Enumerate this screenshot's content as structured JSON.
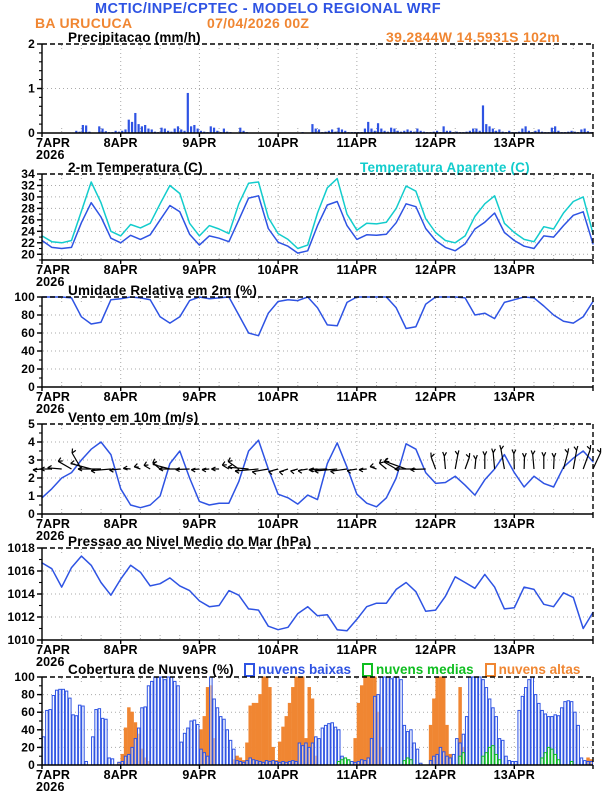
{
  "header": {
    "title": "MCTIC/INPE/CPTEC - MODELO REGIONAL WRF",
    "station": "BA URUCUCA",
    "datetime": "07/04/2026 00Z",
    "location": "39.2844W 14.5931S 102m"
  },
  "colors": {
    "blue": "#2E53E3",
    "cyan": "#12CCCC",
    "orange": "#F08632",
    "green": "#0FBE20",
    "grid": "#AAAAAA",
    "black": "#000000",
    "cloud_low_fill": "#F4F7FF"
  },
  "x_axis": {
    "labels": [
      "7APR",
      "8APR",
      "9APR",
      "10APR",
      "11APR",
      "12APR",
      "13APR"
    ],
    "year": "2026",
    "days": 7
  },
  "chart_data": [
    {
      "id": "precipitation",
      "type": "bar",
      "title": "Precipitacao (mm/h)",
      "ylabel": "mm/h",
      "ylim": [
        0,
        2
      ],
      "yticks": [
        0,
        1,
        2
      ],
      "step_hours": 1,
      "values": [
        0,
        0,
        0,
        0,
        0,
        0,
        0,
        0,
        0,
        0,
        0.05,
        0.03,
        0.18,
        0.17,
        0.03,
        0,
        0,
        0.15,
        0.1,
        0.04,
        0.02,
        0.02,
        0.05,
        0.03,
        0.05,
        0.08,
        0.3,
        0.25,
        0.45,
        0.2,
        0.15,
        0.18,
        0.1,
        0.08,
        0.03,
        0.02,
        0.12,
        0.1,
        0.05,
        0.03,
        0.1,
        0.15,
        0.08,
        0.05,
        0.9,
        0.15,
        0.18,
        0.1,
        0.05,
        0.03,
        0.02,
        0.15,
        0.12,
        0.05,
        0.02,
        0.1,
        0.03,
        0.02,
        0,
        0,
        0.12,
        0.05,
        0.02,
        0,
        0,
        0.01,
        0,
        0,
        0.01,
        0,
        0,
        0,
        0.01,
        0,
        0.01,
        0,
        0.01,
        0,
        0.01,
        0.02,
        0.01,
        0.01,
        0.2,
        0.1,
        0.08,
        0.02,
        0.03,
        0.05,
        0.08,
        0.03,
        0.12,
        0.08,
        0.05,
        0.02,
        0.02,
        0.02,
        0.02,
        0.02,
        0.1,
        0.25,
        0.1,
        0.05,
        0.22,
        0.1,
        0.05,
        0.03,
        0.12,
        0.1,
        0.05,
        0.03,
        0.05,
        0.08,
        0.05,
        0.03,
        0.1,
        0.05,
        0.03,
        0.02,
        0.02,
        0.03,
        0.05,
        0.02,
        0.15,
        0.05,
        0.05,
        0.02,
        0.03,
        0.02,
        0.02,
        0.03,
        0.05,
        0.1,
        0.1,
        0.05,
        0.62,
        0.2,
        0.15,
        0.1,
        0.05,
        0.08,
        0.03,
        0.02,
        0.05,
        0.02,
        0.02,
        0.03,
        0.1,
        0.15,
        0.05,
        0.02,
        0.05,
        0.08,
        0.03,
        0.02,
        0.02,
        0.12,
        0.15,
        0.05,
        0.02,
        0.02,
        0.03,
        0.05,
        0.03,
        0.02,
        0.08,
        0.1,
        0.04,
        0.02
      ]
    },
    {
      "id": "temperature",
      "type": "line",
      "title": "2-m Temperatura (C)",
      "ylim": [
        19,
        34
      ],
      "yticks": [
        20,
        22,
        24,
        26,
        28,
        30,
        32,
        34
      ],
      "step_days": 0.125,
      "series": [
        {
          "name": "Temperatura Aparente (C)",
          "color": "cyan",
          "values": [
            23.2,
            22.2,
            22.0,
            22.4,
            27.5,
            32.6,
            29.0,
            24.0,
            23.2,
            25.2,
            24.6,
            25.4,
            28.8,
            32.0,
            30.6,
            25.4,
            23.2,
            25.0,
            24.4,
            23.6,
            28.8,
            32.4,
            32.6,
            26.4,
            23.6,
            22.6,
            21.0,
            21.6,
            27.2,
            31.6,
            33.2,
            27.0,
            24.2,
            25.4,
            25.3,
            25.6,
            28.0,
            31.9,
            31.0,
            26.2,
            23.8,
            22.4,
            22.0,
            23.2,
            26.6,
            28.8,
            30.2,
            25.4,
            23.8,
            22.6,
            22.2,
            24.8,
            24.4,
            27.2,
            29.2,
            30.0,
            23.6
          ]
        },
        {
          "name": "2-m Temperatura (C)",
          "color": "blue",
          "values": [
            22.4,
            21.2,
            21.0,
            21.2,
            25.5,
            29.0,
            26.5,
            22.8,
            22.0,
            23.3,
            22.6,
            23.4,
            26.0,
            28.5,
            27.4,
            23.5,
            21.6,
            23.2,
            22.8,
            22.2,
            26.0,
            29.8,
            30.2,
            24.5,
            22.1,
            21.4,
            20.2,
            20.6,
            25.0,
            28.6,
            29.2,
            25.0,
            22.6,
            23.4,
            23.3,
            23.5,
            25.5,
            28.8,
            28.3,
            24.5,
            22.4,
            21.2,
            20.6,
            21.8,
            24.4,
            25.6,
            27.2,
            23.8,
            22.4,
            21.4,
            21.0,
            23.2,
            23.0,
            25.0,
            26.8,
            27.4,
            21.8
          ]
        }
      ]
    },
    {
      "id": "humidity",
      "type": "line",
      "title": "Umidade Relativa em 2m (%)",
      "ylim": [
        0,
        100
      ],
      "yticks": [
        0,
        20,
        40,
        60,
        80,
        100
      ],
      "step_days": 0.125,
      "series": [
        {
          "name": "Umidade Relativa em 2m (%)",
          "color": "blue",
          "values": [
            100,
            100,
            100,
            99,
            78,
            70,
            72,
            97,
            98,
            100,
            99,
            97,
            78,
            71,
            78,
            96,
            100,
            98,
            99,
            100,
            80,
            60,
            57,
            82,
            95,
            97,
            96,
            100,
            88,
            69,
            68,
            94,
            100,
            100,
            100,
            100,
            88,
            65,
            67,
            92,
            100,
            100,
            100,
            99,
            80,
            82,
            76,
            94,
            97,
            100,
            99,
            90,
            80,
            73,
            71,
            78,
            95
          ]
        }
      ]
    },
    {
      "id": "wind",
      "type": "line-vectors",
      "title": "Vento em 10m (m/s)",
      "ylim": [
        0,
        5
      ],
      "yticks": [
        0,
        1,
        2,
        3,
        4,
        5
      ],
      "step_days": 0.125,
      "vector_anchor_value": 2.5,
      "speed": [
        0.9,
        1.4,
        2.0,
        2.3,
        3.0,
        3.6,
        4.0,
        3.3,
        1.4,
        0.5,
        0.35,
        0.5,
        1.0,
        2.8,
        3.5,
        2.0,
        0.7,
        0.5,
        0.6,
        0.6,
        1.8,
        3.5,
        4.1,
        2.5,
        1.1,
        0.9,
        0.55,
        1.05,
        0.8,
        2.8,
        3.95,
        2.6,
        1.1,
        0.6,
        0.4,
        0.9,
        2.0,
        3.9,
        3.6,
        2.3,
        1.7,
        1.75,
        2.1,
        1.6,
        1.05,
        1.9,
        2.5,
        3.3,
        2.3,
        1.5,
        2.1,
        1.7,
        1.5,
        2.6,
        3.1,
        3.5,
        2.9
      ],
      "direction_deg_math": [
        185,
        180,
        175,
        150,
        120,
        165,
        180,
        185,
        185,
        175,
        160,
        150,
        140,
        165,
        180,
        182,
        185,
        185,
        180,
        150,
        145,
        175,
        185,
        190,
        195,
        198,
        195,
        190,
        185,
        182,
        185,
        188,
        190,
        185,
        160,
        140,
        150,
        160,
        180,
        182,
        110,
        95,
        80,
        70,
        85,
        90,
        95,
        100,
        92,
        88,
        95,
        90,
        88,
        75,
        80,
        70,
        65
      ]
    },
    {
      "id": "pressure",
      "type": "line",
      "title": "Pressao ao Nivel Medio do Mar (hPa)",
      "ylim": [
        1010,
        1018
      ],
      "yticks": [
        1010,
        1012,
        1014,
        1016,
        1018
      ],
      "step_days": 0.125,
      "series": [
        {
          "name": "Pressao ao Nivel Medio do Mar (hPa)",
          "color": "blue",
          "values": [
            1016.7,
            1016.2,
            1014.6,
            1016.3,
            1017.3,
            1016.5,
            1015.0,
            1013.9,
            1015.3,
            1016.5,
            1015.9,
            1014.7,
            1014.9,
            1015.4,
            1014.7,
            1014.3,
            1013.4,
            1012.9,
            1013.0,
            1014.3,
            1013.9,
            1012.7,
            1012.6,
            1011.2,
            1010.9,
            1011.1,
            1012.3,
            1012.9,
            1012.1,
            1012.2,
            1010.9,
            1010.8,
            1011.8,
            1012.9,
            1013.2,
            1013.2,
            1014.4,
            1015.0,
            1014.2,
            1012.5,
            1012.6,
            1013.8,
            1015.5,
            1015.0,
            1014.5,
            1015.7,
            1014.6,
            1012.7,
            1012.8,
            1014.6,
            1014.4,
            1013.1,
            1012.9,
            1014.1,
            1013.7,
            1011.0,
            1012.4
          ]
        }
      ]
    },
    {
      "id": "clouds",
      "type": "bar-multi",
      "title": "Cobertura de Nuvens (%)",
      "ylim": [
        0,
        100
      ],
      "yticks": [
        0,
        20,
        40,
        60,
        80,
        100
      ],
      "step_hours": 1,
      "series": [
        {
          "name": "nuvens altas",
          "color": "orange",
          "style": "solid",
          "values": [
            0,
            0,
            0,
            0,
            0,
            0,
            0,
            0,
            0,
            0,
            0,
            0,
            0,
            0,
            0,
            0,
            0,
            0,
            0,
            0,
            0,
            0,
            0,
            3,
            12,
            42,
            65,
            60,
            48,
            35,
            18,
            8,
            4,
            0,
            0,
            0,
            0,
            0,
            0,
            0,
            0,
            0,
            0,
            0,
            0,
            0,
            0,
            0,
            40,
            55,
            88,
            90,
            30,
            0,
            0,
            0,
            0,
            0,
            6,
            10,
            8,
            5,
            25,
            67,
            70,
            70,
            80,
            100,
            100,
            88,
            20,
            5,
            26,
            43,
            55,
            70,
            88,
            100,
            100,
            100,
            30,
            88,
            75,
            10,
            0,
            0,
            0,
            0,
            0,
            0,
            0,
            0,
            0,
            0,
            0,
            30,
            70,
            90,
            100,
            100,
            100,
            100,
            60,
            20,
            0,
            0,
            0,
            0,
            0,
            0,
            0,
            0,
            0,
            0,
            0,
            0,
            0,
            0,
            45,
            75,
            100,
            100,
            100,
            45,
            12,
            0,
            0,
            88,
            20,
            0,
            0,
            0,
            0,
            0,
            0,
            0,
            0,
            0,
            0,
            0,
            0,
            0,
            0,
            0,
            0,
            0,
            0,
            0,
            0,
            0,
            0,
            0,
            0,
            0,
            0,
            0,
            0,
            0,
            0,
            0,
            0,
            0,
            0,
            0,
            0,
            0,
            8,
            6
          ]
        },
        {
          "name": "nuvens baixas",
          "color": "blue",
          "style": "outline",
          "values": [
            32,
            62,
            63,
            79,
            85,
            86,
            86,
            84,
            76,
            57,
            56,
            68,
            67,
            4,
            0,
            32,
            63,
            64,
            53,
            52,
            8,
            7,
            0,
            3,
            4,
            10,
            12,
            20,
            30,
            42,
            65,
            66,
            90,
            95,
            100,
            100,
            100,
            97,
            100,
            100,
            95,
            90,
            26,
            36,
            42,
            50,
            51,
            46,
            18,
            14,
            10,
            100,
            75,
            65,
            55,
            52,
            40,
            28,
            18,
            5,
            4,
            3,
            5,
            8,
            6,
            5,
            4,
            3,
            5,
            4,
            5,
            4,
            3,
            4,
            3,
            4,
            5,
            4,
            25,
            22,
            25,
            20,
            25,
            32,
            30,
            42,
            45,
            47,
            48,
            43,
            40,
            10,
            8,
            5,
            4,
            3,
            4,
            6,
            5,
            8,
            30,
            78,
            80,
            100,
            100,
            100,
            98,
            100,
            100,
            97,
            45,
            38,
            40,
            25,
            18,
            2,
            0,
            0,
            5,
            10,
            12,
            20,
            15,
            10,
            8,
            12,
            30,
            25,
            35,
            55,
            100,
            100,
            100,
            100,
            97,
            88,
            75,
            65,
            55,
            30,
            28,
            10,
            5,
            4,
            4,
            62,
            78,
            88,
            97,
            100,
            80,
            70,
            62,
            58,
            55,
            55,
            57,
            56,
            65,
            72,
            73,
            72,
            60,
            45,
            8,
            5,
            4,
            4
          ]
        },
        {
          "name": "nuvens medias",
          "color": "green",
          "style": "outline",
          "values": [
            0,
            0,
            0,
            0,
            0,
            0,
            0,
            0,
            0,
            0,
            0,
            0,
            0,
            0,
            0,
            0,
            0,
            0,
            0,
            0,
            0,
            0,
            0,
            0,
            0,
            0,
            0,
            0,
            0,
            0,
            0,
            0,
            0,
            0,
            0,
            0,
            0,
            0,
            0,
            0,
            0,
            0,
            0,
            0,
            0,
            0,
            0,
            0,
            0,
            0,
            0,
            0,
            0,
            0,
            0,
            0,
            0,
            0,
            0,
            0,
            0,
            0,
            0,
            0,
            0,
            0,
            0,
            0,
            0,
            0,
            0,
            0,
            0,
            0,
            0,
            0,
            0,
            0,
            0,
            0,
            0,
            0,
            0,
            0,
            0,
            0,
            0,
            0,
            0,
            0,
            4,
            6,
            8,
            6,
            0,
            0,
            0,
            0,
            0,
            0,
            0,
            0,
            0,
            0,
            0,
            0,
            0,
            0,
            0,
            0,
            5,
            8,
            6,
            0,
            0,
            0,
            0,
            0,
            0,
            0,
            0,
            0,
            0,
            0,
            0,
            0,
            0,
            10,
            14,
            0,
            0,
            0,
            0,
            0,
            10,
            14,
            20,
            22,
            12,
            6,
            0,
            0,
            0,
            0,
            0,
            0,
            0,
            0,
            0,
            0,
            0,
            0,
            8,
            14,
            20,
            18,
            12,
            6,
            0,
            0,
            0,
            4,
            0,
            0,
            0,
            0,
            0,
            0
          ]
        }
      ],
      "legend_order": [
        "nuvens baixas",
        "nuvens medias",
        "nuvens altas"
      ]
    }
  ]
}
